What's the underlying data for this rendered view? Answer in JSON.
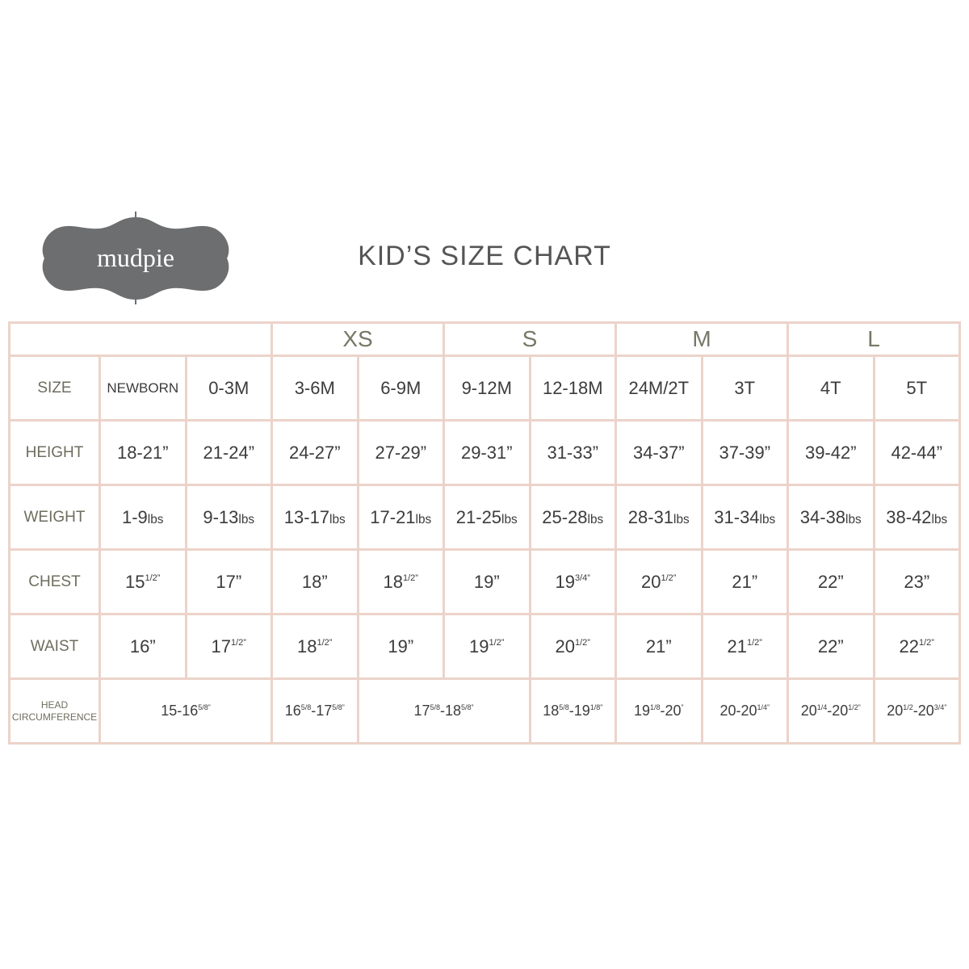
{
  "header": {
    "logo": "mudpie",
    "title": "KID’S SIZE CHART"
  },
  "table": {
    "groups": [
      "XS",
      "S",
      "M",
      "L"
    ],
    "rows": [
      {
        "label": "SIZE",
        "cells": [
          [
            "NEWBORN"
          ],
          [
            "0-3M"
          ],
          [
            "3-6M"
          ],
          [
            "6-9M"
          ],
          [
            "9-12M"
          ],
          [
            "12-18M"
          ],
          [
            "24M/2T"
          ],
          [
            "3T"
          ],
          [
            "4T"
          ],
          [
            "5T"
          ]
        ]
      },
      {
        "label": "HEIGHT",
        "cells": [
          [
            "18-21”"
          ],
          [
            "21-24”"
          ],
          [
            "24-27”"
          ],
          [
            "27-29”"
          ],
          [
            "29-31”"
          ],
          [
            "31-33”"
          ],
          [
            "34-37”"
          ],
          [
            "37-39”"
          ],
          [
            "39-42”"
          ],
          [
            "42-44”"
          ]
        ]
      },
      {
        "label": "WEIGHT",
        "cells": [
          [
            "1-9",
            {
              "small": "lbs"
            }
          ],
          [
            "9-13",
            {
              "small": "lbs"
            }
          ],
          [
            "13-17",
            {
              "small": "lbs"
            }
          ],
          [
            "17-21",
            {
              "small": "lbs"
            }
          ],
          [
            "21-25",
            {
              "small": "lbs"
            }
          ],
          [
            "25-28",
            {
              "small": "lbs"
            }
          ],
          [
            "28-31",
            {
              "small": "lbs"
            }
          ],
          [
            "31-34",
            {
              "small": "lbs"
            }
          ],
          [
            "34-38",
            {
              "small": "lbs"
            }
          ],
          [
            "38-42",
            {
              "small": "lbs"
            }
          ]
        ]
      },
      {
        "label": "CHEST",
        "cells": [
          [
            "15",
            {
              "sup": "1/2”"
            }
          ],
          [
            "17”"
          ],
          [
            "18”"
          ],
          [
            "18",
            {
              "sup": "1/2”"
            }
          ],
          [
            "19”"
          ],
          [
            "19",
            {
              "sup": "3/4”"
            }
          ],
          [
            "20",
            {
              "sup": "1/2”"
            }
          ],
          [
            "21”"
          ],
          [
            "22”"
          ],
          [
            "23”"
          ]
        ]
      },
      {
        "label": "WAIST",
        "cells": [
          [
            "16”"
          ],
          [
            "17",
            {
              "sup": "1/2”"
            }
          ],
          [
            "18",
            {
              "sup": "1/2”"
            }
          ],
          [
            "19”"
          ],
          [
            "19",
            {
              "sup": "1/2”"
            }
          ],
          [
            "20",
            {
              "sup": "1/2”"
            }
          ],
          [
            "21”"
          ],
          [
            "21",
            {
              "sup": "1/2”"
            }
          ],
          [
            "22”"
          ],
          [
            "22",
            {
              "sup": "1/2”"
            }
          ]
        ]
      },
      {
        "label": "HEAD CIRCUMFERENCE",
        "cells": [
          [
            "15-16",
            {
              "sup": "5/8”"
            }
          ],
          [
            "16",
            {
              "sup": "5/8"
            },
            "-17",
            {
              "sup": "5/8”"
            }
          ],
          [
            "17",
            {
              "sup": "5/8"
            },
            "-18",
            {
              "sup": "5/8”"
            }
          ],
          [
            "18",
            {
              "sup": "5/8"
            },
            "-19",
            {
              "sup": "1/8”"
            }
          ],
          [
            "19",
            {
              "sup": "1/8"
            },
            "-20",
            {
              "sup": "”"
            }
          ],
          [
            "20-20",
            {
              "sup": "1/4”"
            }
          ],
          [
            "20",
            {
              "sup": "1/4"
            },
            "-20",
            {
              "sup": "1/2”"
            }
          ],
          [
            "20",
            {
              "sup": "1/2"
            },
            "-20",
            {
              "sup": "3/4”"
            }
          ]
        ]
      }
    ]
  }
}
